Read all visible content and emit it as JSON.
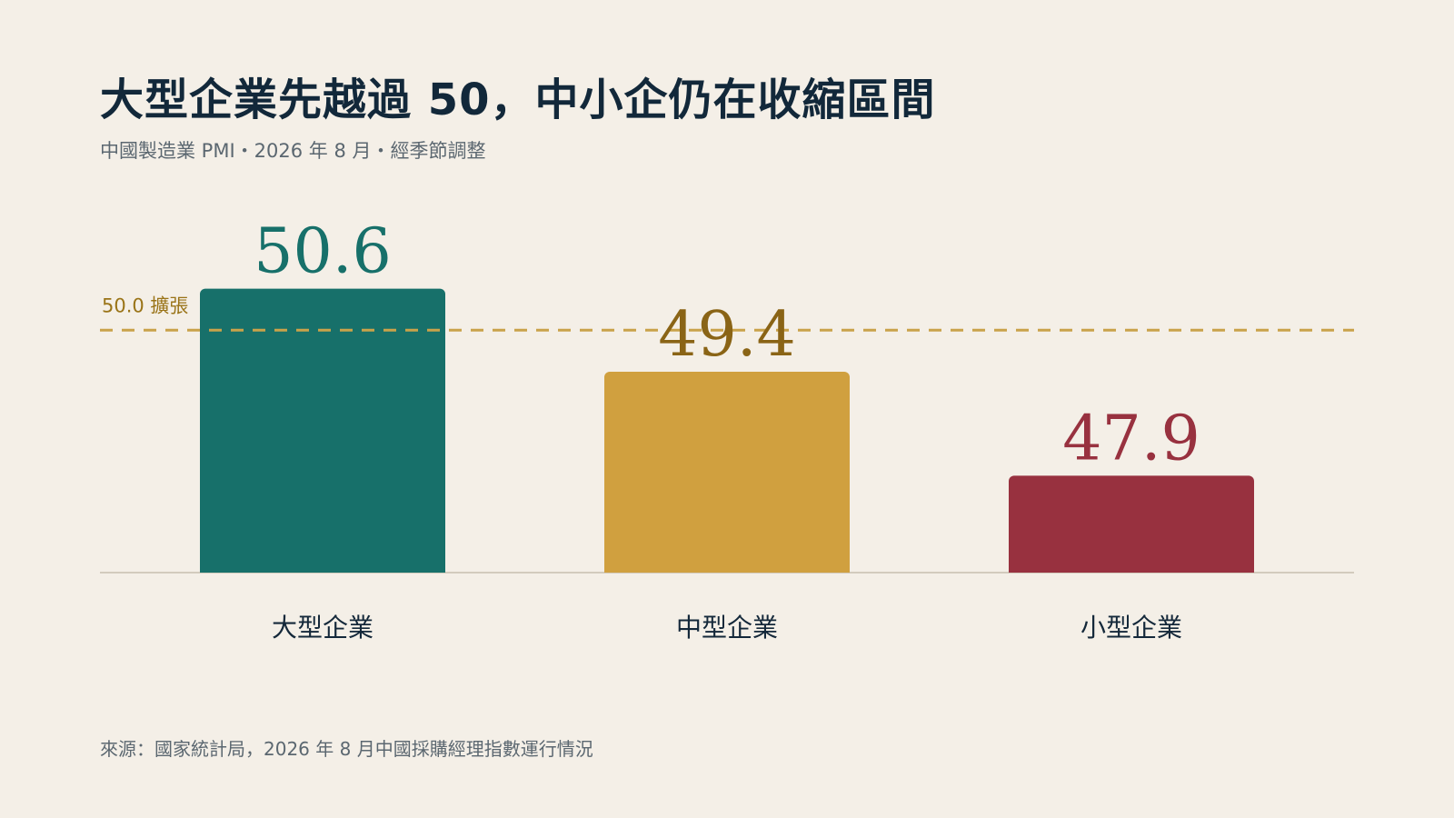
{
  "header": {
    "title": "大型企業先越過 50，中小企仍在收縮區間",
    "subtitle": "中國製造業 PMI・2026 年 8 月・經季節調整"
  },
  "footer": {
    "source": "來源：國家統計局，2026 年 8 月中國採購經理指數運行情況"
  },
  "chart_data": {
    "type": "bar",
    "title": "大型企業先越過 50，中小企仍在收縮區間",
    "subtitle": "中國製造業 PMI・2026 年 8 月・經季節調整",
    "categories": [
      "大型企業",
      "中型企業",
      "小型企業"
    ],
    "values": [
      50.6,
      49.4,
      47.9
    ],
    "value_labels": [
      "50.6",
      "49.4",
      "47.9"
    ],
    "colors": [
      "#17706a",
      "#d0a03f",
      "#98313f"
    ],
    "label_colors": [
      "#17706a",
      "#8a6416",
      "#98313f"
    ],
    "reference_line": {
      "value": 50.0,
      "label": "50.0 擴張",
      "color": "#c9a24a"
    },
    "ylim": [
      46.5,
      51.0
    ],
    "xlabel": "",
    "ylabel": "",
    "grid": false
  }
}
